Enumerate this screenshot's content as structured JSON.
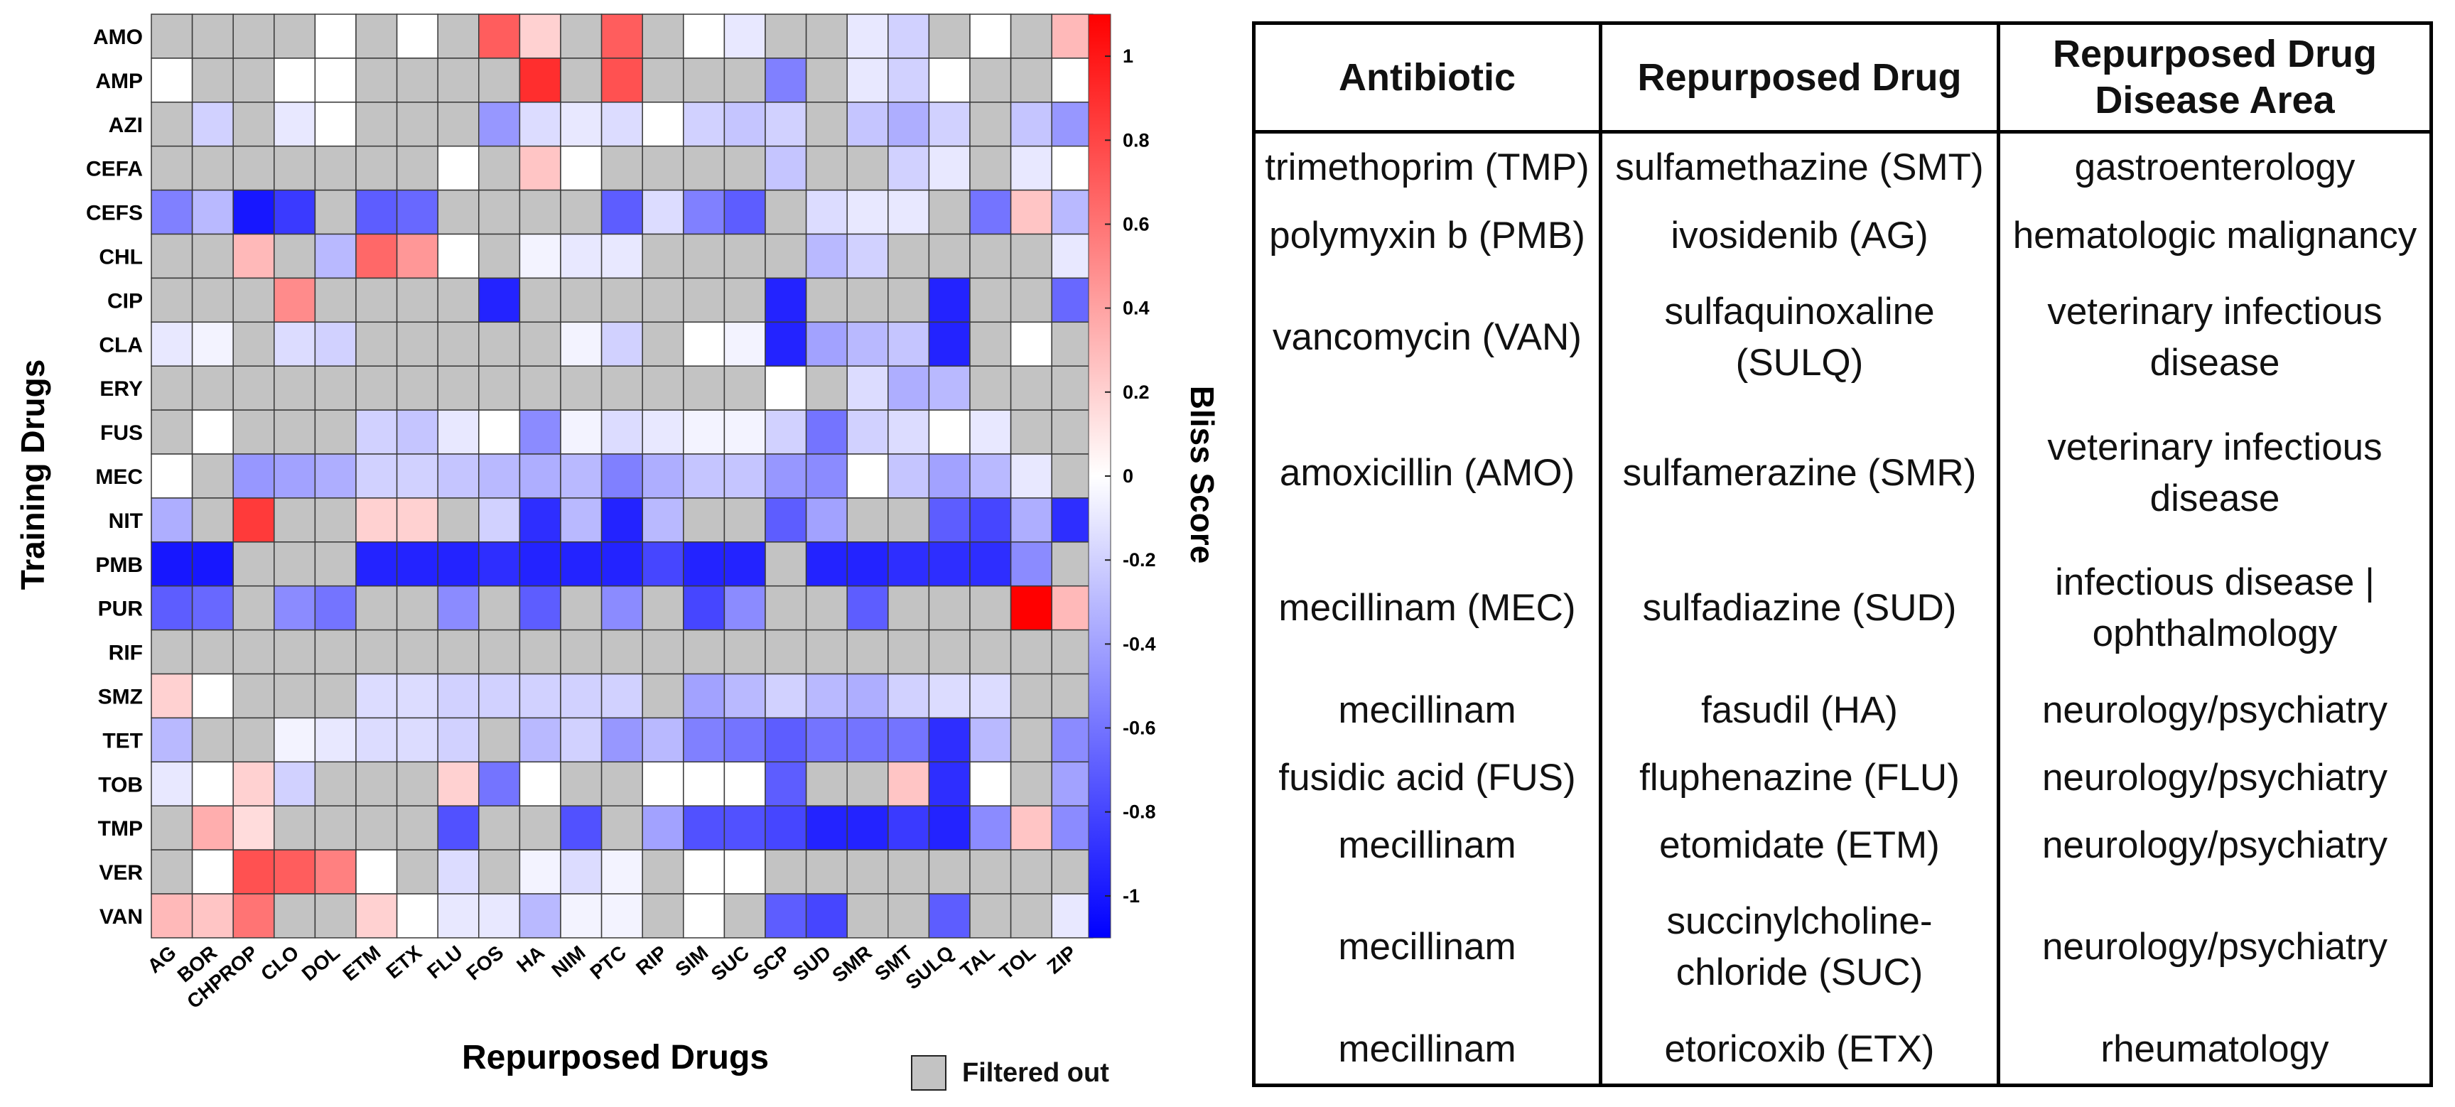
{
  "chart_data": {
    "type": "heatmap",
    "title": "",
    "xlabel": "Repurposed Drugs",
    "ylabel": "Training Drugs",
    "colorbar_label": "Bliss Score",
    "colorbar_range": [
      -1.1,
      1.1
    ],
    "colorbar_ticks": [
      "1",
      "0.8",
      "0.6",
      "0.4",
      "0.2",
      "0",
      "-0.2",
      "-0.4",
      "-0.6",
      "-0.8",
      "-1"
    ],
    "colorbar_tick_values": [
      1,
      0.8,
      0.6,
      0.4,
      0.2,
      0,
      -0.2,
      -0.4,
      -0.6,
      -0.8,
      -1
    ],
    "filtered_color": "#c3c3c3",
    "x_categories": [
      "AG",
      "BOR",
      "CHPROP",
      "CLO",
      "DOL",
      "ETM",
      "ETX",
      "FLU",
      "FOS",
      "HA",
      "NIM",
      "PTC",
      "RIP",
      "SIM",
      "SUC",
      "SCP",
      "SUD",
      "SMR",
      "SMT",
      "SULQ",
      "TAL",
      "TOL",
      "ZIP"
    ],
    "y_categories": [
      "AMO",
      "AMP",
      "AZI",
      "CEFA",
      "CEFS",
      "CHL",
      "CIP",
      "CLA",
      "ERY",
      "FUS",
      "MEC",
      "NIT",
      "PMB",
      "PUR",
      "RIF",
      "SMZ",
      "TET",
      "TOB",
      "TMP",
      "VER",
      "VAN"
    ],
    "values_note": "Bliss score per cell, rows = training drugs (top to bottom), columns = repurposed drugs (left to right); null = filtered out",
    "values": [
      [
        null,
        null,
        null,
        null,
        0.0,
        null,
        0.0,
        null,
        0.7,
        0.2,
        null,
        0.7,
        null,
        0.0,
        -0.1,
        null,
        null,
        -0.1,
        -0.2,
        null,
        0.0,
        null,
        0.3
      ],
      [
        0.0,
        null,
        null,
        0.0,
        0.0,
        null,
        null,
        null,
        null,
        0.9,
        null,
        0.75,
        null,
        null,
        null,
        -0.55,
        null,
        -0.1,
        -0.2,
        0.0,
        null,
        null,
        0.0
      ],
      [
        null,
        -0.2,
        null,
        -0.1,
        0.0,
        null,
        null,
        null,
        -0.45,
        -0.15,
        -0.1,
        -0.15,
        0.0,
        -0.2,
        -0.25,
        -0.2,
        null,
        -0.25,
        -0.35,
        -0.2,
        null,
        -0.25,
        -0.45
      ],
      [
        null,
        null,
        null,
        null,
        null,
        null,
        null,
        0.0,
        null,
        0.25,
        0.0,
        null,
        null,
        null,
        null,
        -0.25,
        null,
        null,
        -0.2,
        -0.1,
        null,
        -0.1,
        0.0
      ],
      [
        -0.55,
        -0.3,
        -1.0,
        -0.85,
        null,
        -0.7,
        -0.65,
        null,
        null,
        null,
        null,
        -0.7,
        -0.15,
        -0.55,
        -0.7,
        null,
        -0.15,
        -0.1,
        -0.1,
        null,
        -0.6,
        0.25,
        -0.3
      ],
      [
        null,
        null,
        0.3,
        null,
        -0.3,
        0.65,
        0.45,
        0.0,
        null,
        -0.05,
        -0.1,
        -0.1,
        null,
        null,
        null,
        null,
        -0.3,
        -0.2,
        null,
        null,
        null,
        null,
        -0.1
      ],
      [
        null,
        null,
        null,
        0.5,
        null,
        null,
        null,
        null,
        -0.95,
        null,
        null,
        null,
        null,
        null,
        null,
        -0.95,
        null,
        null,
        null,
        -0.95,
        null,
        null,
        -0.65
      ],
      [
        -0.1,
        -0.05,
        null,
        -0.15,
        -0.2,
        null,
        null,
        null,
        null,
        null,
        -0.05,
        -0.2,
        null,
        0.0,
        -0.05,
        -0.95,
        -0.4,
        -0.3,
        -0.25,
        -0.95,
        null,
        0.0,
        null
      ],
      [
        null,
        null,
        null,
        null,
        null,
        null,
        null,
        null,
        null,
        null,
        null,
        null,
        null,
        null,
        null,
        0.0,
        null,
        -0.15,
        -0.35,
        -0.3,
        null,
        null,
        null
      ],
      [
        null,
        0.0,
        null,
        null,
        null,
        -0.2,
        -0.25,
        -0.1,
        0.0,
        -0.5,
        -0.05,
        -0.15,
        -0.1,
        -0.05,
        -0.05,
        -0.2,
        -0.6,
        -0.2,
        -0.15,
        0.0,
        -0.1,
        null,
        null
      ],
      [
        0.0,
        null,
        -0.45,
        -0.4,
        -0.35,
        -0.2,
        -0.2,
        -0.25,
        -0.3,
        -0.35,
        -0.3,
        -0.55,
        -0.35,
        -0.25,
        -0.25,
        -0.45,
        -0.5,
        0.0,
        -0.25,
        -0.4,
        -0.3,
        -0.1,
        null
      ],
      [
        -0.35,
        null,
        0.85,
        null,
        null,
        0.2,
        0.2,
        null,
        -0.2,
        -0.9,
        -0.3,
        -0.95,
        -0.3,
        null,
        null,
        -0.7,
        -0.4,
        null,
        null,
        -0.7,
        -0.8,
        -0.35,
        -0.9
      ],
      [
        -1.0,
        -1.0,
        null,
        null,
        null,
        -0.95,
        -0.95,
        -0.95,
        -0.9,
        -0.95,
        -0.95,
        -0.95,
        -0.8,
        -0.95,
        -0.95,
        null,
        -0.95,
        -0.95,
        -0.9,
        -0.9,
        -0.9,
        -0.5,
        null
      ],
      [
        -0.7,
        -0.65,
        null,
        -0.5,
        -0.6,
        null,
        null,
        -0.5,
        null,
        -0.7,
        null,
        -0.5,
        null,
        -0.8,
        -0.5,
        null,
        null,
        -0.7,
        null,
        null,
        null,
        1.1,
        0.3
      ],
      [
        null,
        null,
        null,
        null,
        null,
        null,
        null,
        null,
        null,
        null,
        null,
        null,
        null,
        null,
        null,
        null,
        null,
        null,
        null,
        null,
        null,
        null,
        null
      ],
      [
        0.2,
        0.0,
        null,
        null,
        null,
        -0.15,
        -0.15,
        -0.2,
        -0.2,
        -0.2,
        -0.2,
        -0.2,
        null,
        -0.4,
        -0.3,
        -0.2,
        -0.3,
        -0.35,
        -0.2,
        -0.15,
        -0.15,
        null,
        null
      ],
      [
        -0.3,
        null,
        null,
        -0.05,
        -0.1,
        -0.15,
        -0.15,
        -0.2,
        null,
        -0.3,
        -0.2,
        -0.45,
        -0.3,
        -0.55,
        -0.6,
        -0.7,
        -0.6,
        -0.6,
        -0.6,
        -0.9,
        -0.3,
        null,
        -0.5
      ],
      [
        -0.1,
        0.0,
        0.2,
        -0.2,
        null,
        null,
        null,
        0.2,
        -0.6,
        0.0,
        null,
        null,
        0.0,
        0.0,
        0.0,
        -0.7,
        null,
        null,
        0.25,
        -0.9,
        0.0,
        null,
        -0.4
      ],
      [
        null,
        0.35,
        0.15,
        null,
        null,
        null,
        null,
        -0.75,
        null,
        null,
        -0.75,
        null,
        -0.4,
        -0.75,
        -0.75,
        -0.8,
        -0.95,
        -0.95,
        -0.85,
        -0.95,
        -0.5,
        0.25,
        -0.5
      ],
      [
        null,
        0.0,
        0.75,
        0.7,
        0.55,
        0.0,
        null,
        -0.15,
        null,
        -0.05,
        -0.15,
        -0.05,
        null,
        0.0,
        0.0,
        null,
        null,
        null,
        null,
        null,
        null,
        null,
        null
      ],
      [
        0.3,
        0.25,
        0.6,
        null,
        null,
        0.2,
        0.0,
        -0.1,
        -0.1,
        -0.3,
        -0.05,
        -0.05,
        null,
        0.0,
        null,
        -0.7,
        -0.8,
        null,
        null,
        -0.7,
        null,
        null,
        -0.1
      ]
    ]
  },
  "legend": {
    "filtered_label": "Filtered out"
  },
  "table": {
    "headers": [
      "Antibiotic",
      "Repurposed Drug",
      "Repurposed Drug Disease Area"
    ],
    "rows": [
      [
        "trimethoprim (TMP)",
        "sulfamethazine (SMT)",
        "gastroenterology"
      ],
      [
        "polymyxin b (PMB)",
        "ivosidenib (AG)",
        "hematologic malignancy"
      ],
      [
        "vancomycin (VAN)",
        "sulfaquinoxaline (SULQ)",
        "veterinary infectious disease"
      ],
      [
        "amoxicillin (AMO)",
        "sulfamerazine (SMR)",
        "veterinary infectious disease"
      ],
      [
        "mecillinam (MEC)",
        "sulfadiazine (SUD)",
        "infectious disease | ophthalmology"
      ],
      [
        "mecillinam",
        "fasudil (HA)",
        "neurology/psychiatry"
      ],
      [
        "fusidic acid (FUS)",
        "fluphenazine (FLU)",
        "neurology/psychiatry"
      ],
      [
        "mecillinam",
        "etomidate (ETM)",
        "neurology/psychiatry"
      ],
      [
        "mecillinam",
        "succinylcholine-chloride (SUC)",
        "neurology/psychiatry"
      ],
      [
        "mecillinam",
        "etoricoxib (ETX)",
        "rheumatology"
      ]
    ]
  }
}
